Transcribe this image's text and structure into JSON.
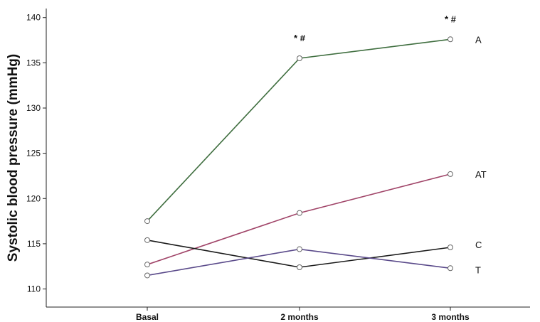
{
  "chart_data": {
    "type": "line",
    "categories": [
      "Basal",
      "2 months",
      "3 months"
    ],
    "ylabel": "Systolic blood pressure (mmHg)",
    "xlabel": "",
    "ylim": [
      108,
      141
    ],
    "yticks": [
      110,
      115,
      120,
      125,
      130,
      135,
      140
    ],
    "grid": false,
    "legend": "none",
    "series": [
      {
        "name": "A",
        "values": [
          117.5,
          135.5,
          137.6
        ],
        "color": "#3f6e3f"
      },
      {
        "name": "AT",
        "values": [
          112.7,
          118.4,
          122.7
        ],
        "color": "#a04468"
      },
      {
        "name": "C",
        "values": [
          115.4,
          112.4,
          114.6
        ],
        "color": "#1a1a1a"
      },
      {
        "name": "T",
        "values": [
          111.5,
          114.4,
          112.3
        ],
        "color": "#5a4a8a"
      }
    ],
    "annotations": [
      {
        "text": "* #",
        "category": "2 months",
        "value": 135.5
      },
      {
        "text": "* #",
        "category": "3 months",
        "value": 137.6
      }
    ]
  }
}
